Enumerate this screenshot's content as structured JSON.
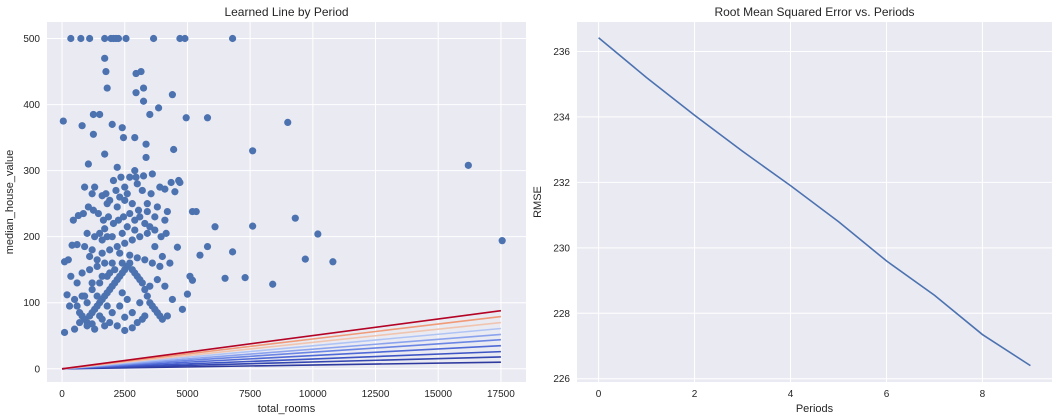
{
  "chart_data": [
    {
      "type": "scatter",
      "title": "Learned Line by Period",
      "xlabel": "total_rooms",
      "ylabel": "median_house_value",
      "xlim": [
        -600,
        18500
      ],
      "ylim": [
        -20,
        525
      ],
      "xticks": [
        0,
        2500,
        5000,
        7500,
        10000,
        12500,
        15000,
        17500
      ],
      "yticks": [
        0,
        100,
        200,
        300,
        400,
        500
      ],
      "grid": true,
      "point_color": "#4c72b0",
      "points": [
        [
          50,
          375
        ],
        [
          350,
          500
        ],
        [
          750,
          500
        ],
        [
          1100,
          500
        ],
        [
          1700,
          500
        ],
        [
          1950,
          500
        ],
        [
          2050,
          500
        ],
        [
          2150,
          500
        ],
        [
          2250,
          500
        ],
        [
          2550,
          500
        ],
        [
          3650,
          500
        ],
        [
          4700,
          500
        ],
        [
          4900,
          500
        ],
        [
          6800,
          500
        ],
        [
          1700,
          470
        ],
        [
          1750,
          450
        ],
        [
          2950,
          447
        ],
        [
          3150,
          450
        ],
        [
          1800,
          425
        ],
        [
          2950,
          418
        ],
        [
          3250,
          425
        ],
        [
          4400,
          415
        ],
        [
          5800,
          380
        ],
        [
          4950,
          380
        ],
        [
          9000,
          373
        ],
        [
          3250,
          405
        ],
        [
          3850,
          395
        ],
        [
          3500,
          385
        ],
        [
          1500,
          385
        ],
        [
          1250,
          385
        ],
        [
          2000,
          370
        ],
        [
          2400,
          365
        ],
        [
          2450,
          350
        ],
        [
          2900,
          350
        ],
        [
          3350,
          340
        ],
        [
          1250,
          355
        ],
        [
          800,
          368
        ],
        [
          7600,
          330
        ],
        [
          4450,
          332
        ],
        [
          3350,
          320
        ],
        [
          1700,
          325
        ],
        [
          1050,
          310
        ],
        [
          16200,
          308
        ],
        [
          2200,
          305
        ],
        [
          2050,
          285
        ],
        [
          2350,
          290
        ],
        [
          2700,
          290
        ],
        [
          2950,
          290
        ],
        [
          3250,
          292
        ],
        [
          4650,
          285
        ],
        [
          4700,
          282
        ],
        [
          4350,
          282
        ],
        [
          3900,
          275
        ],
        [
          4100,
          272
        ],
        [
          1750,
          265
        ],
        [
          2150,
          270
        ],
        [
          2500,
          275
        ],
        [
          3550,
          265
        ],
        [
          3000,
          280
        ],
        [
          4500,
          268
        ],
        [
          900,
          275
        ],
        [
          1300,
          275
        ],
        [
          1800,
          250
        ],
        [
          2200,
          245
        ],
        [
          2500,
          255
        ],
        [
          2800,
          250
        ],
        [
          3050,
          240
        ],
        [
          3400,
          238
        ],
        [
          3800,
          245
        ],
        [
          4200,
          238
        ],
        [
          5200,
          238
        ],
        [
          5350,
          238
        ],
        [
          9300,
          228
        ],
        [
          10200,
          204
        ],
        [
          9700,
          166
        ],
        [
          10800,
          162
        ],
        [
          17550,
          194
        ],
        [
          7600,
          216
        ],
        [
          6100,
          215
        ],
        [
          5800,
          185
        ],
        [
          6800,
          177
        ],
        [
          6500,
          137
        ],
        [
          7300,
          138
        ],
        [
          8400,
          128
        ],
        [
          5500,
          172
        ],
        [
          5200,
          134
        ],
        [
          5100,
          140
        ],
        [
          5000,
          113
        ],
        [
          4600,
          184
        ],
        [
          4150,
          205
        ],
        [
          3950,
          200
        ],
        [
          3700,
          210
        ],
        [
          3500,
          215
        ],
        [
          3300,
          220
        ],
        [
          3100,
          230
        ],
        [
          2900,
          225
        ],
        [
          2700,
          235
        ],
        [
          2450,
          230
        ],
        [
          2250,
          225
        ],
        [
          2050,
          220
        ],
        [
          1850,
          230
        ],
        [
          1650,
          225
        ],
        [
          1450,
          235
        ],
        [
          1250,
          240
        ],
        [
          1050,
          245
        ],
        [
          850,
          235
        ],
        [
          650,
          232
        ],
        [
          450,
          225
        ],
        [
          600,
          188
        ],
        [
          400,
          187
        ],
        [
          250,
          165
        ],
        [
          100,
          162
        ],
        [
          350,
          140
        ],
        [
          200,
          112
        ],
        [
          100,
          55
        ],
        [
          300,
          95
        ],
        [
          500,
          105
        ],
        [
          600,
          95
        ],
        [
          700,
          85
        ],
        [
          800,
          80
        ],
        [
          900,
          75
        ],
        [
          1000,
          70
        ],
        [
          1100,
          80
        ],
        [
          1200,
          85
        ],
        [
          1300,
          90
        ],
        [
          1400,
          95
        ],
        [
          1500,
          100
        ],
        [
          1600,
          105
        ],
        [
          1700,
          110
        ],
        [
          1800,
          115
        ],
        [
          1900,
          120
        ],
        [
          2000,
          125
        ],
        [
          2100,
          130
        ],
        [
          2200,
          135
        ],
        [
          2300,
          140
        ],
        [
          2400,
          145
        ],
        [
          2500,
          150
        ],
        [
          2600,
          155
        ],
        [
          2700,
          160
        ],
        [
          2800,
          150
        ],
        [
          2900,
          145
        ],
        [
          3000,
          140
        ],
        [
          3100,
          135
        ],
        [
          3200,
          130
        ],
        [
          3300,
          120
        ],
        [
          3400,
          110
        ],
        [
          3500,
          100
        ],
        [
          3600,
          95
        ],
        [
          3700,
          90
        ],
        [
          3800,
          85
        ],
        [
          3900,
          80
        ],
        [
          4000,
          75
        ],
        [
          4200,
          80
        ],
        [
          4400,
          105
        ],
        [
          4800,
          90
        ],
        [
          3200,
          75
        ],
        [
          3000,
          70
        ],
        [
          2800,
          62
        ],
        [
          2500,
          58
        ],
        [
          2200,
          65
        ],
        [
          1900,
          70
        ],
        [
          1600,
          75
        ],
        [
          1300,
          60
        ],
        [
          1000,
          65
        ],
        [
          700,
          70
        ],
        [
          500,
          60
        ],
        [
          900,
          110
        ],
        [
          1200,
          120
        ],
        [
          1500,
          130
        ],
        [
          1800,
          140
        ],
        [
          2100,
          150
        ],
        [
          2400,
          160
        ],
        [
          1700,
          160
        ],
        [
          1400,
          155
        ],
        [
          1100,
          150
        ],
        [
          800,
          145
        ],
        [
          600,
          130
        ],
        [
          1900,
          180
        ],
        [
          2200,
          185
        ],
        [
          2500,
          190
        ],
        [
          2800,
          195
        ],
        [
          3100,
          200
        ],
        [
          3400,
          205
        ],
        [
          3700,
          185
        ],
        [
          4000,
          170
        ],
        [
          4300,
          160
        ],
        [
          1600,
          195
        ],
        [
          1300,
          200
        ],
        [
          1000,
          205
        ],
        [
          2700,
          172
        ],
        [
          3000,
          168
        ],
        [
          3300,
          165
        ],
        [
          3600,
          160
        ],
        [
          3900,
          155
        ],
        [
          2300,
          175
        ],
        [
          1400,
          165
        ],
        [
          2000,
          160
        ],
        [
          1100,
          170
        ],
        [
          1800,
          200
        ],
        [
          2600,
          215
        ],
        [
          2900,
          210
        ],
        [
          3800,
          135
        ],
        [
          4100,
          125
        ],
        [
          3500,
          125
        ],
        [
          1600,
          140
        ],
        [
          1900,
          145
        ],
        [
          1200,
          130
        ],
        [
          2400,
          115
        ],
        [
          2600,
          105
        ],
        [
          3100,
          100
        ],
        [
          1400,
          110
        ],
        [
          1800,
          95
        ],
        [
          2000,
          85
        ],
        [
          2300,
          95
        ],
        [
          1500,
          80
        ],
        [
          1700,
          65
        ],
        [
          1200,
          68
        ],
        [
          2500,
          78
        ],
        [
          2800,
          85
        ],
        [
          3300,
          80
        ],
        [
          1000,
          100
        ],
        [
          800,
          110
        ],
        [
          1600,
          175
        ],
        [
          1200,
          180
        ],
        [
          2000,
          200
        ],
        [
          1700,
          212
        ],
        [
          2400,
          205
        ],
        [
          1500,
          205
        ],
        [
          900,
          185
        ],
        [
          3400,
          250
        ],
        [
          3700,
          230
        ],
        [
          4100,
          225
        ],
        [
          2600,
          265
        ],
        [
          2300,
          260
        ],
        [
          1900,
          255
        ],
        [
          1600,
          262
        ],
        [
          1200,
          265
        ],
        [
          3200,
          270
        ],
        [
          3600,
          295
        ],
        [
          2900,
          300
        ]
      ],
      "lines": [
        {
          "x": [
            0,
            17500
          ],
          "y": [
            0,
            10
          ],
          "color": "#2e3a9e"
        },
        {
          "x": [
            0,
            17500
          ],
          "y": [
            0,
            18
          ],
          "color": "#3446b0"
        },
        {
          "x": [
            0,
            17500
          ],
          "y": [
            0,
            26
          ],
          "color": "#3d55c4"
        },
        {
          "x": [
            0,
            17500
          ],
          "y": [
            0,
            35
          ],
          "color": "#4f69d6"
        },
        {
          "x": [
            0,
            17500
          ],
          "y": [
            0,
            44
          ],
          "color": "#6b85e4"
        },
        {
          "x": [
            0,
            17500
          ],
          "y": [
            0,
            52
          ],
          "color": "#8ba3ee"
        },
        {
          "x": [
            0,
            17500
          ],
          "y": [
            0,
            61
          ],
          "color": "#afc4f5"
        },
        {
          "x": [
            0,
            17500
          ],
          "y": [
            0,
            70
          ],
          "color": "#f0c5b0"
        },
        {
          "x": [
            0,
            17500
          ],
          "y": [
            0,
            79
          ],
          "color": "#f09a78"
        },
        {
          "x": [
            0,
            17500
          ],
          "y": [
            0,
            88
          ],
          "color": "#b40426"
        }
      ]
    },
    {
      "type": "line",
      "title": "Root Mean Squared Error vs. Periods",
      "xlabel": "Periods",
      "ylabel": "RMSE",
      "xlim": [
        -0.45,
        9.45
      ],
      "ylim": [
        225.9,
        236.9
      ],
      "xticks": [
        0,
        2,
        4,
        6,
        8
      ],
      "yticks": [
        226,
        228,
        230,
        232,
        234,
        236
      ],
      "grid": true,
      "line_color": "#4c72b0",
      "x": [
        0,
        1,
        2,
        3,
        4,
        5,
        6,
        7,
        8,
        9
      ],
      "y": [
        236.42,
        235.2,
        234.05,
        232.95,
        231.9,
        230.8,
        229.6,
        228.55,
        227.35,
        226.4
      ]
    }
  ]
}
